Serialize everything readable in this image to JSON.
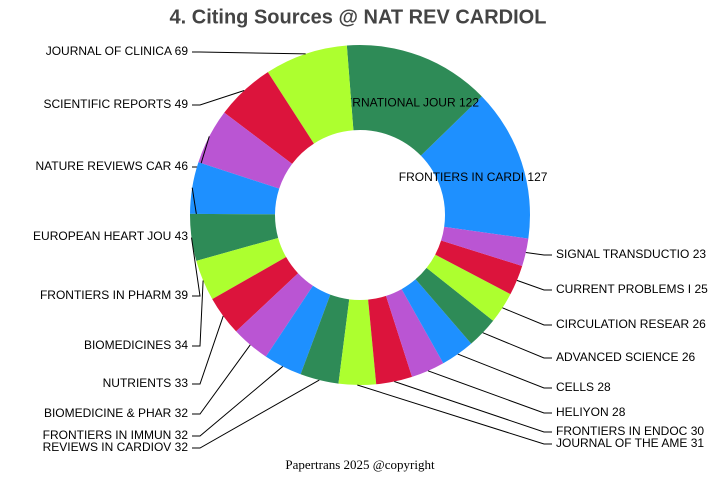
{
  "chart_data": {
    "type": "donut",
    "title": "4. Citing Sources @ NAT REV CARDIOL",
    "footer": "Papertrans 2025 @copyright",
    "categories": [
      "FRONTIERS IN CARDI",
      "INTERNATIONAL JOUR",
      "JOURNAL OF CLINICA",
      "SCIENTIFIC REPORTS",
      "NATURE REVIEWS CAR",
      "EUROPEAN HEART JOU",
      "FRONTIERS IN PHARM",
      "BIOMEDICINES",
      "NUTRIENTS",
      "BIOMEDICINE & PHAR",
      "FRONTIERS IN IMMUN",
      "REVIEWS IN CARDIOV",
      "JOURNAL OF THE AME",
      "FRONTIERS IN ENDOC",
      "HELIYON",
      "CELLS",
      "ADVANCED SCIENCE",
      "CIRCULATION RESEAR",
      "CURRENT PROBLEMS I",
      "SIGNAL TRANSDUCTIO"
    ],
    "values": [
      127,
      122,
      69,
      49,
      46,
      43,
      39,
      34,
      33,
      32,
      32,
      32,
      31,
      30,
      28,
      28,
      26,
      26,
      25,
      23
    ],
    "colors": [
      "#1e90ff",
      "#2e8b57",
      "#adff2f",
      "#dc143c",
      "#ba55d3"
    ]
  }
}
